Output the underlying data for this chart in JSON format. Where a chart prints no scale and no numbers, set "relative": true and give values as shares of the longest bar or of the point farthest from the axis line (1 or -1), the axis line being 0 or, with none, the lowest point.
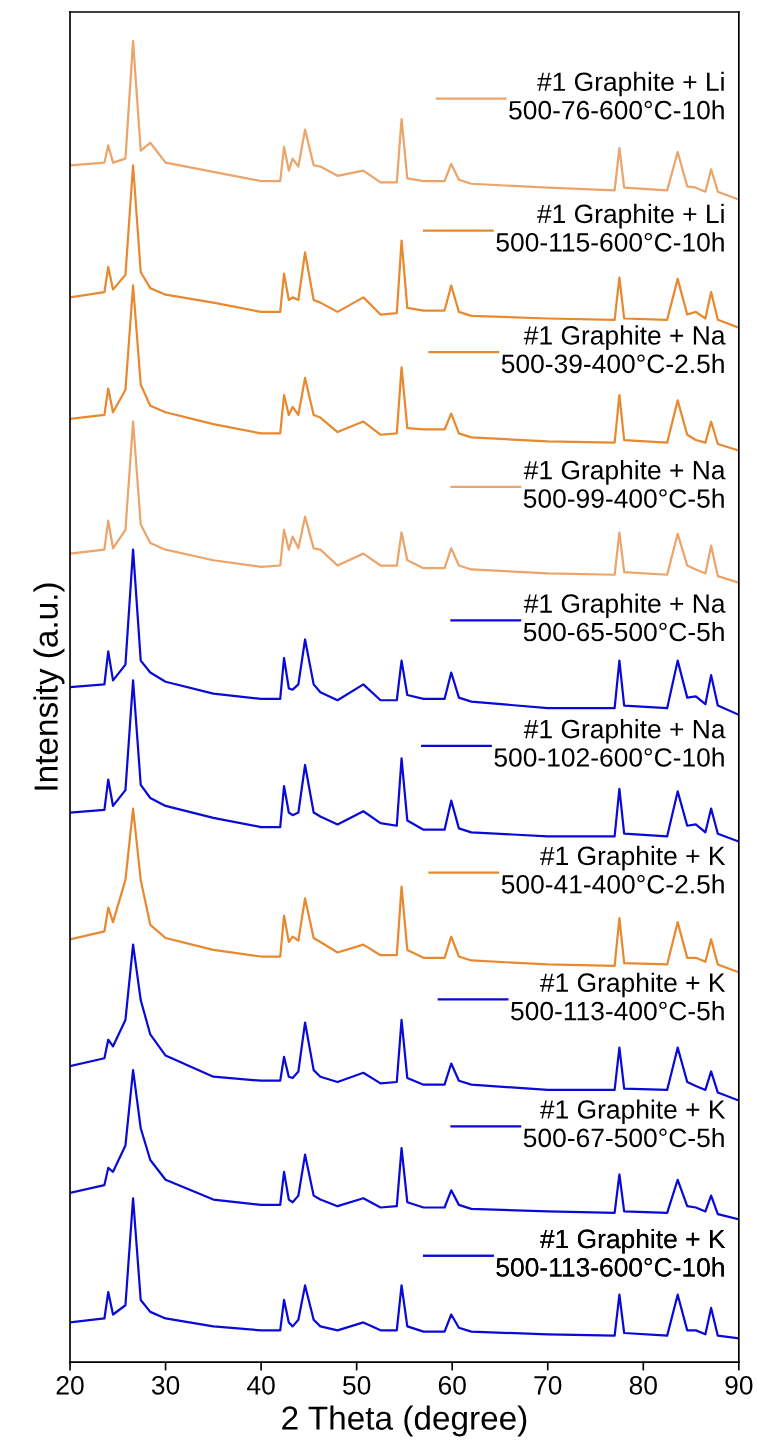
{
  "chart_data": {
    "type": "line",
    "relative": true,
    "xlabel": "2 Theta (degree)",
    "ylabel": "Intensity (a.u.)",
    "xlim": [
      20,
      90
    ],
    "xticks": [
      20,
      30,
      40,
      50,
      60,
      70,
      80,
      90
    ],
    "tick_labels": "x",
    "grid": false,
    "legend": "right",
    "line_style": "solid",
    "marker": "none",
    "x": [
      20,
      23.6,
      24.0,
      24.5,
      25.8,
      26.6,
      27.4,
      28.4,
      30,
      35,
      40,
      42.0,
      42.4,
      42.9,
      43.3,
      43.9,
      44.6,
      45.5,
      46.2,
      48,
      50.7,
      52.5,
      54.2,
      54.7,
      55.3,
      57,
      59.2,
      59.9,
      60.7,
      62,
      70,
      77.0,
      77.5,
      78.0,
      82.5,
      83.6,
      84.6,
      85.5,
      86.5,
      87.1,
      87.8,
      90
    ],
    "series": [
      {
        "name": "#1 Graphite + Li\n500-76-600°C-10h",
        "color": "#eba46a",
        "values": [
          0.906,
          0.908,
          0.921,
          0.908,
          0.911,
          1.0,
          0.917,
          0.923,
          0.908,
          0.901,
          0.894,
          0.894,
          0.92,
          0.902,
          0.911,
          0.905,
          0.933,
          0.906,
          0.905,
          0.898,
          0.902,
          0.893,
          0.893,
          0.941,
          0.896,
          0.894,
          0.894,
          0.907,
          0.895,
          0.892,
          0.889,
          0.887,
          0.919,
          0.889,
          0.887,
          0.916,
          0.89,
          0.889,
          0.886,
          0.903,
          0.886,
          0.88
        ]
      },
      {
        "name": "#1 Graphite + Li\n500-115-600°C-10h",
        "color": "#e8892f",
        "values": [
          0.806,
          0.81,
          0.829,
          0.812,
          0.823,
          0.906,
          0.825,
          0.813,
          0.808,
          0.802,
          0.795,
          0.795,
          0.824,
          0.804,
          0.806,
          0.804,
          0.84,
          0.804,
          0.802,
          0.795,
          0.806,
          0.793,
          0.794,
          0.849,
          0.798,
          0.796,
          0.796,
          0.815,
          0.795,
          0.792,
          0.79,
          0.789,
          0.821,
          0.79,
          0.789,
          0.82,
          0.793,
          0.795,
          0.79,
          0.81,
          0.789,
          0.783
        ]
      },
      {
        "name": "#1 Graphite + Na\n500-39-400°C-2.5h",
        "color": "#e8892f",
        "values": [
          0.714,
          0.717,
          0.737,
          0.719,
          0.736,
          0.815,
          0.74,
          0.724,
          0.719,
          0.71,
          0.703,
          0.703,
          0.732,
          0.717,
          0.723,
          0.717,
          0.745,
          0.717,
          0.715,
          0.704,
          0.712,
          0.702,
          0.703,
          0.753,
          0.707,
          0.706,
          0.706,
          0.718,
          0.703,
          0.7,
          0.697,
          0.696,
          0.732,
          0.698,
          0.696,
          0.728,
          0.702,
          0.698,
          0.696,
          0.712,
          0.695,
          0.69
        ]
      },
      {
        "name": "#1 Graphite + Na\n500-99-400°C-5h",
        "color": "#eba46a",
        "values": [
          0.612,
          0.615,
          0.637,
          0.616,
          0.63,
          0.712,
          0.634,
          0.62,
          0.615,
          0.607,
          0.602,
          0.603,
          0.63,
          0.615,
          0.625,
          0.616,
          0.64,
          0.616,
          0.615,
          0.603,
          0.612,
          0.603,
          0.603,
          0.628,
          0.607,
          0.601,
          0.601,
          0.616,
          0.603,
          0.6,
          0.597,
          0.596,
          0.628,
          0.598,
          0.596,
          0.627,
          0.603,
          0.6,
          0.597,
          0.618,
          0.595,
          0.59
        ]
      },
      {
        "name": "#1 Graphite + Na\n500-65-500°C-5h",
        "color": "#0a0ad8",
        "values": [
          0.511,
          0.513,
          0.538,
          0.516,
          0.528,
          0.615,
          0.531,
          0.522,
          0.515,
          0.506,
          0.502,
          0.502,
          0.533,
          0.51,
          0.509,
          0.513,
          0.547,
          0.513,
          0.507,
          0.501,
          0.513,
          0.501,
          0.501,
          0.531,
          0.505,
          0.502,
          0.502,
          0.522,
          0.503,
          0.5,
          0.495,
          0.495,
          0.531,
          0.497,
          0.495,
          0.531,
          0.503,
          0.504,
          0.498,
          0.52,
          0.497,
          0.49
        ]
      },
      {
        "name": "#1 Graphite + Na\n500-102-600°C-10h",
        "color": "#0a0ad8",
        "values": [
          0.416,
          0.418,
          0.441,
          0.421,
          0.433,
          0.516,
          0.437,
          0.427,
          0.421,
          0.412,
          0.405,
          0.405,
          0.436,
          0.416,
          0.414,
          0.416,
          0.452,
          0.416,
          0.413,
          0.407,
          0.417,
          0.408,
          0.406,
          0.457,
          0.41,
          0.403,
          0.403,
          0.425,
          0.404,
          0.401,
          0.398,
          0.398,
          0.434,
          0.4,
          0.398,
          0.432,
          0.406,
          0.407,
          0.401,
          0.419,
          0.4,
          0.394
        ]
      },
      {
        "name": "#1 Graphite + K\n500-41-400°C-2.5h",
        "color": "#e8892f",
        "values": [
          0.32,
          0.326,
          0.344,
          0.333,
          0.365,
          0.419,
          0.365,
          0.331,
          0.321,
          0.312,
          0.307,
          0.307,
          0.338,
          0.318,
          0.322,
          0.319,
          0.351,
          0.321,
          0.318,
          0.31,
          0.316,
          0.308,
          0.308,
          0.36,
          0.312,
          0.306,
          0.306,
          0.322,
          0.307,
          0.304,
          0.301,
          0.3,
          0.336,
          0.302,
          0.301,
          0.333,
          0.306,
          0.306,
          0.303,
          0.32,
          0.301,
          0.295
        ]
      },
      {
        "name": "#1 Graphite + K\n500-113-400°C-5h",
        "color": "#0a0ad8",
        "values": [
          0.224,
          0.23,
          0.244,
          0.239,
          0.259,
          0.316,
          0.274,
          0.248,
          0.232,
          0.216,
          0.213,
          0.213,
          0.231,
          0.216,
          0.215,
          0.22,
          0.257,
          0.221,
          0.216,
          0.212,
          0.219,
          0.211,
          0.212,
          0.259,
          0.215,
          0.21,
          0.21,
          0.226,
          0.213,
          0.21,
          0.206,
          0.206,
          0.238,
          0.207,
          0.206,
          0.238,
          0.212,
          0.209,
          0.206,
          0.22,
          0.204,
          0.198
        ]
      },
      {
        "name": "#1 Graphite + K\n500-67-500°C-5h",
        "color": "#0a0ad8",
        "values": [
          0.128,
          0.134,
          0.147,
          0.144,
          0.164,
          0.221,
          0.177,
          0.153,
          0.138,
          0.123,
          0.119,
          0.119,
          0.144,
          0.123,
          0.121,
          0.126,
          0.157,
          0.126,
          0.123,
          0.118,
          0.124,
          0.117,
          0.118,
          0.162,
          0.121,
          0.117,
          0.117,
          0.13,
          0.119,
          0.116,
          0.114,
          0.113,
          0.142,
          0.114,
          0.113,
          0.138,
          0.118,
          0.117,
          0.114,
          0.126,
          0.112,
          0.108
        ]
      },
      {
        "name": "#1 Graphite + K\n500-113-600°C-10h",
        "color": "#0a0ad8",
        "values": [
          0.03,
          0.033,
          0.053,
          0.036,
          0.043,
          0.124,
          0.047,
          0.038,
          0.033,
          0.027,
          0.024,
          0.024,
          0.047,
          0.03,
          0.027,
          0.032,
          0.058,
          0.032,
          0.027,
          0.024,
          0.03,
          0.024,
          0.024,
          0.058,
          0.027,
          0.023,
          0.023,
          0.036,
          0.026,
          0.023,
          0.021,
          0.02,
          0.051,
          0.022,
          0.02,
          0.051,
          0.024,
          0.024,
          0.021,
          0.041,
          0.02,
          0.018
        ]
      }
    ]
  }
}
